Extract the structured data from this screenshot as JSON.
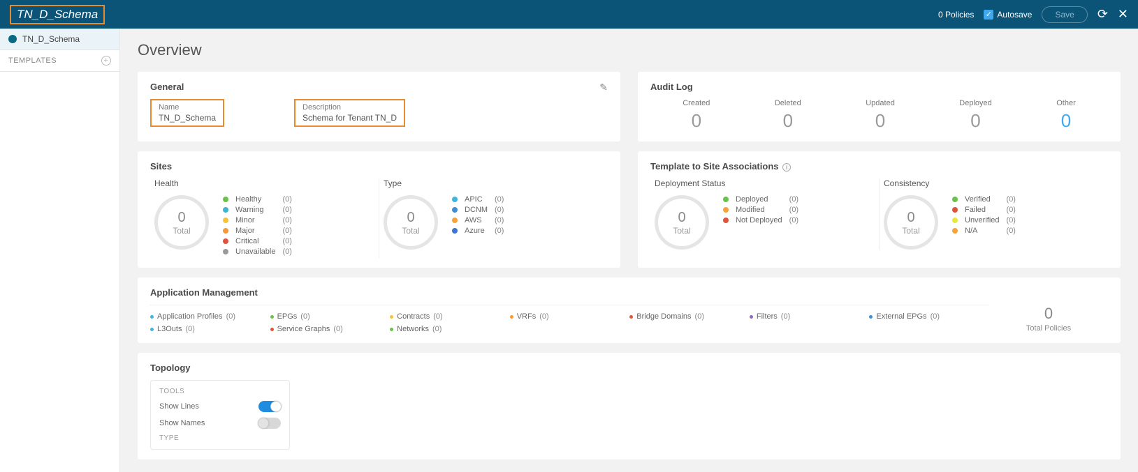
{
  "topbar": {
    "title": "TN_D_Schema",
    "policies": "0 Policies",
    "autosave_label": "Autosave",
    "save_label": "Save"
  },
  "sidebar": {
    "schema_item": "TN_D_Schema",
    "templates_label": "TEMPLATES"
  },
  "overview": {
    "title": "Overview"
  },
  "general": {
    "title": "General",
    "name_label": "Name",
    "name_value": "TN_D_Schema",
    "desc_label": "Description",
    "desc_value": "Schema for Tenant TN_D"
  },
  "audit": {
    "title": "Audit Log",
    "items": [
      {
        "label": "Created",
        "value": "0",
        "class": ""
      },
      {
        "label": "Deleted",
        "value": "0",
        "class": ""
      },
      {
        "label": "Updated",
        "value": "0",
        "class": ""
      },
      {
        "label": "Deployed",
        "value": "0",
        "class": ""
      },
      {
        "label": "Other",
        "value": "0",
        "class": "blue"
      }
    ]
  },
  "sites": {
    "title": "Sites",
    "health_title": "Health",
    "type_title": "Type",
    "total_num": "0",
    "total_lbl": "Total",
    "health_legend": [
      {
        "name": "Healthy",
        "count": "(0)",
        "color": "#6bc04b"
      },
      {
        "name": "Warning",
        "count": "(0)",
        "color": "#3fb4d1"
      },
      {
        "name": "Minor",
        "count": "(0)",
        "color": "#f5c340"
      },
      {
        "name": "Major",
        "count": "(0)",
        "color": "#f59a3a"
      },
      {
        "name": "Critical",
        "count": "(0)",
        "color": "#e0533b"
      },
      {
        "name": "Unavailable",
        "count": "(0)",
        "color": "#9a9a9a"
      }
    ],
    "type_legend": [
      {
        "name": "APIC",
        "count": "(0)",
        "color": "#3fb4e0"
      },
      {
        "name": "DCNM",
        "count": "(0)",
        "color": "#3f8fd1"
      },
      {
        "name": "AWS",
        "count": "(0)",
        "color": "#f5a33a"
      },
      {
        "name": "Azure",
        "count": "(0)",
        "color": "#3f74d1"
      }
    ]
  },
  "tsa": {
    "title": "Template to Site Associations",
    "deploy_title": "Deployment Status",
    "consist_title": "Consistency",
    "total_num": "0",
    "total_lbl": "Total",
    "deploy_legend": [
      {
        "name": "Deployed",
        "count": "(0)",
        "color": "#6bc04b"
      },
      {
        "name": "Modified",
        "count": "(0)",
        "color": "#f5a33a"
      },
      {
        "name": "Not Deployed",
        "count": "(0)",
        "color": "#e0533b"
      }
    ],
    "consist_legend": [
      {
        "name": "Verified",
        "count": "(0)",
        "color": "#6bc04b"
      },
      {
        "name": "Failed",
        "count": "(0)",
        "color": "#e0533b"
      },
      {
        "name": "Unverified",
        "count": "(0)",
        "color": "#e7e93f"
      },
      {
        "name": "N/A",
        "count": "(0)",
        "color": "#f5a33a"
      }
    ]
  },
  "appmgmt": {
    "title": "Application Management",
    "total_num": "0",
    "total_lbl": "Total Policies",
    "items": [
      {
        "name": "Application Profiles",
        "count": "(0)",
        "color": "#3fb4e0"
      },
      {
        "name": "EPGs",
        "count": "(0)",
        "color": "#6bc04b"
      },
      {
        "name": "Contracts",
        "count": "(0)",
        "color": "#f5c340"
      },
      {
        "name": "VRFs",
        "count": "(0)",
        "color": "#f59a3a"
      },
      {
        "name": "Bridge Domains",
        "count": "(0)",
        "color": "#e0533b"
      },
      {
        "name": "Filters",
        "count": "(0)",
        "color": "#8a6bc0"
      },
      {
        "name": "External EPGs",
        "count": "(0)",
        "color": "#3f8fd1"
      },
      {
        "name": "L3Outs",
        "count": "(0)",
        "color": "#3fb4e0"
      },
      {
        "name": "Service Graphs",
        "count": "(0)",
        "color": "#e0533b"
      },
      {
        "name": "Networks",
        "count": "(0)",
        "color": "#6bc04b"
      }
    ]
  },
  "topology": {
    "title": "Topology",
    "tools_label": "TOOLS",
    "show_lines": "Show Lines",
    "show_names": "Show Names",
    "type_label": "TYPE"
  }
}
